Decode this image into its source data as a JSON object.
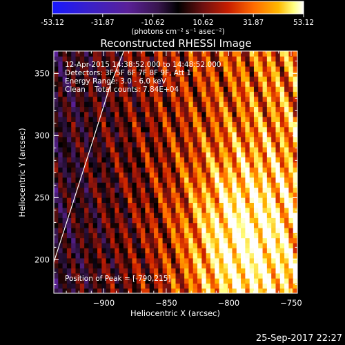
{
  "colorbar": {
    "ticks": [
      "-53.12",
      "-31.87",
      "-10.62",
      "10.62",
      "31.87",
      "53.12"
    ],
    "tick_values": [
      -53.12,
      -31.87,
      -10.62,
      10.62,
      31.87,
      53.12
    ],
    "range": [
      -53.12,
      53.12
    ],
    "unit_label": "(photons cm⁻² s⁻¹ asec⁻²)"
  },
  "info": {
    "time": "12-Apr-2015 14:38:52.000 to 14:48:52.000",
    "detectors": "Detectors: 3F 5F 6F 7F 8F 9F, Att 1",
    "energy": "Energy Range: 3.0 - 6.0 keV",
    "method": "Clean    Total counts: 7.84E+04",
    "peak": "Position of Peak = [-790,215]"
  },
  "footer": {
    "date": "25-Sep-2017 22:27"
  },
  "chart_data": {
    "type": "heatmap",
    "title": "Reconstructed RHESSI Image",
    "xlabel": "Heliocentric X (arcsec)",
    "ylabel": "Heliocentric Y (arcsec)",
    "xlim": [
      -940,
      -745
    ],
    "ylim": [
      173,
      368
    ],
    "x_ticks": [
      -900,
      -850,
      -800,
      -750
    ],
    "y_ticks": [
      200,
      250,
      300,
      350
    ],
    "x_tick_labels": [
      "−900",
      "−850",
      "−800",
      "−750"
    ],
    "y_tick_labels": [
      "200",
      "250",
      "300",
      "350"
    ],
    "colormap": [
      "#1818ff",
      "#3a20c8",
      "#5a2098",
      "#38164e",
      "#000000",
      "#6e1010",
      "#c81e00",
      "#ff6a00",
      "#ffb800",
      "#ffff80",
      "#ffffff"
    ],
    "peak": [
      -790,
      215
    ],
    "value_range": [
      -53.12,
      53.12
    ],
    "limb_curve": [
      [
        -940,
        198
      ],
      [
        -925,
        245
      ],
      [
        -910,
        292
      ],
      [
        -895,
        340
      ],
      [
        -884,
        368
      ]
    ]
  }
}
